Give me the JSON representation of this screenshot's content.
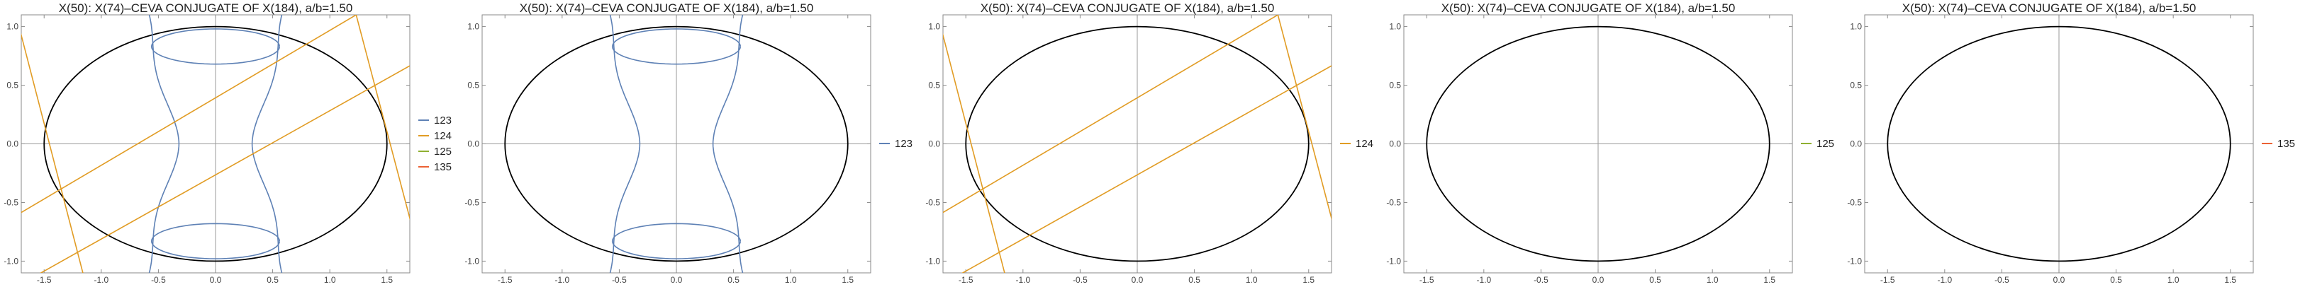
{
  "chart_data": [
    {
      "type": "line",
      "title": "X(50): X(74)–CEVA CONJUGATE OF X(184), a/b=1.50",
      "xlim": [
        -1.7,
        1.7
      ],
      "ylim": [
        -1.1,
        1.1
      ],
      "x_ticks": [
        "-1.5",
        "-1.0",
        "-0.5",
        "0.0",
        "0.5",
        "1.0",
        "1.5"
      ],
      "y_ticks": [
        "-1.0",
        "-0.5",
        "0.0",
        "0.5",
        "1.0"
      ],
      "ellipse": {
        "a": 1.5,
        "b": 1.0,
        "color": "#000000"
      },
      "legend_position": "right",
      "series": [
        {
          "name": "123",
          "color": "#5e81b5",
          "visible": true
        },
        {
          "name": "124",
          "color": "#e19c24",
          "visible": true
        },
        {
          "name": "125",
          "color": "#8fb032",
          "visible": false
        },
        {
          "name": "135",
          "color": "#eb6235",
          "visible": false
        }
      ]
    },
    {
      "type": "line",
      "title": "X(50): X(74)–CEVA CONJUGATE OF X(184), a/b=1.50",
      "xlim": [
        -1.7,
        1.7
      ],
      "ylim": [
        -1.1,
        1.1
      ],
      "x_ticks": [
        "-1.5",
        "-1.0",
        "-0.5",
        "0.0",
        "0.5",
        "1.0",
        "1.5"
      ],
      "y_ticks": [
        "-1.0",
        "-0.5",
        "0.0",
        "0.5",
        "1.0"
      ],
      "ellipse": {
        "a": 1.5,
        "b": 1.0,
        "color": "#000000"
      },
      "legend_position": "right",
      "series": [
        {
          "name": "123",
          "color": "#5e81b5",
          "visible": true
        }
      ]
    },
    {
      "type": "line",
      "title": "X(50): X(74)–CEVA CONJUGATE OF X(184), a/b=1.50",
      "xlim": [
        -1.7,
        1.7
      ],
      "ylim": [
        -1.1,
        1.1
      ],
      "x_ticks": [
        "-1.5",
        "-1.0",
        "-0.5",
        "0.0",
        "0.5",
        "1.0",
        "1.5"
      ],
      "y_ticks": [
        "-1.0",
        "-0.5",
        "0.0",
        "0.5",
        "1.0"
      ],
      "ellipse": {
        "a": 1.5,
        "b": 1.0,
        "color": "#000000"
      },
      "legend_position": "right",
      "series": [
        {
          "name": "124",
          "color": "#e19c24",
          "visible": true
        }
      ]
    },
    {
      "type": "line",
      "title": "X(50): X(74)–CEVA CONJUGATE OF X(184), a/b=1.50",
      "xlim": [
        -1.7,
        1.7
      ],
      "ylim": [
        -1.1,
        1.1
      ],
      "x_ticks": [
        "-1.5",
        "-1.0",
        "-0.5",
        "0.0",
        "0.5",
        "1.0",
        "1.5"
      ],
      "y_ticks": [
        "-1.0",
        "-0.5",
        "0.0",
        "0.5",
        "1.0"
      ],
      "ellipse": {
        "a": 1.5,
        "b": 1.0,
        "color": "#000000"
      },
      "legend_position": "right",
      "series": [
        {
          "name": "125",
          "color": "#8fb032",
          "visible": false
        }
      ]
    },
    {
      "type": "line",
      "title": "X(50): X(74)–CEVA CONJUGATE OF X(184), a/b=1.50",
      "xlim": [
        -1.7,
        1.7
      ],
      "ylim": [
        -1.1,
        1.1
      ],
      "x_ticks": [
        "-1.5",
        "-1.0",
        "-0.5",
        "0.0",
        "0.5",
        "1.0",
        "1.5"
      ],
      "y_ticks": [
        "-1.0",
        "-0.5",
        "0.0",
        "0.5",
        "1.0"
      ],
      "ellipse": {
        "a": 1.5,
        "b": 1.0,
        "color": "#000000"
      },
      "legend_position": "right",
      "series": [
        {
          "name": "135",
          "color": "#eb6235",
          "visible": false
        }
      ]
    }
  ]
}
